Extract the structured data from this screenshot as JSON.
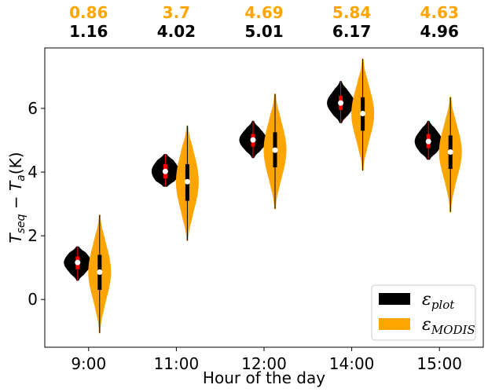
{
  "chart_data": {
    "type": "violin",
    "title": "",
    "xlabel": "Hour of the day",
    "ylabel": "T_seq − T_a(K)",
    "ylabel_parts": {
      "T": "T",
      "sub1": "seq",
      "minus": " − T",
      "sub2": "a",
      "unit": "(K)"
    },
    "categories": [
      "9:00",
      "11:00",
      "12:00",
      "14:00",
      "15:00"
    ],
    "ylim": [
      -1.5,
      7.9
    ],
    "yticks": [
      0,
      2,
      4,
      6
    ],
    "ytick_labels": [
      "0",
      "2",
      "4",
      "6"
    ],
    "legend_position": "lower-right",
    "series": [
      {
        "key": "plot",
        "legend_base": "ε",
        "legend_sub": "plot",
        "color": "#000000",
        "marker_color": "#ff0000",
        "top_labels": [
          "1.16",
          "4.02",
          "5.01",
          "6.17",
          "4.96"
        ],
        "medians": [
          1.16,
          4.02,
          5.01,
          6.17,
          4.96
        ],
        "q1": [
          0.95,
          3.8,
          4.8,
          5.95,
          4.75
        ],
        "q3": [
          1.35,
          4.25,
          5.2,
          6.4,
          5.2
        ],
        "mins": [
          0.6,
          3.55,
          4.45,
          5.55,
          4.4
        ],
        "maxs": [
          1.65,
          4.55,
          5.6,
          6.85,
          5.6
        ]
      },
      {
        "key": "modis",
        "legend_base": "ε",
        "legend_sub": "MODIS",
        "color": "#ffa500",
        "marker_color": "#000000",
        "top_labels": [
          "0.86",
          "3.7",
          "4.69",
          "5.84",
          "4.63"
        ],
        "medians": [
          0.86,
          3.7,
          4.69,
          5.84,
          4.63
        ],
        "q1": [
          0.3,
          3.1,
          4.15,
          5.3,
          4.1
        ],
        "q3": [
          1.4,
          4.25,
          5.25,
          6.35,
          5.15
        ],
        "mins": [
          -1.05,
          1.85,
          2.85,
          4.05,
          2.75
        ],
        "maxs": [
          2.65,
          5.45,
          6.45,
          7.55,
          6.35
        ]
      }
    ]
  }
}
